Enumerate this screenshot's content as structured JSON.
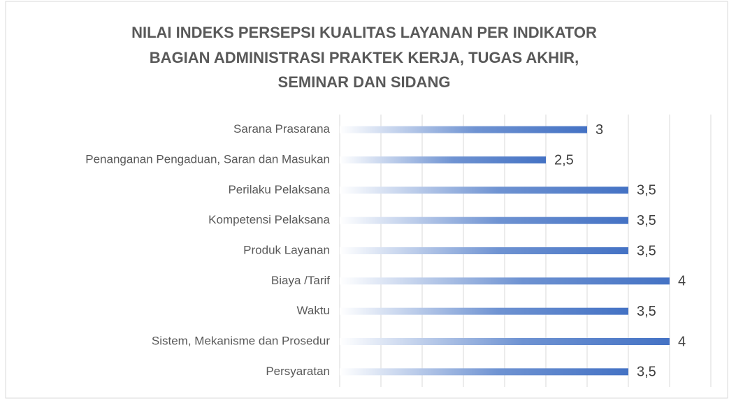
{
  "chart_data": {
    "type": "bar",
    "orientation": "horizontal",
    "title": [
      "NILAI INDEKS PERSEPSI KUALITAS LAYANAN PER INDIKATOR",
      "BAGIAN ADMINISTRASI PRAKTEK KERJA, TUGAS AKHIR,",
      "SEMINAR DAN SIDANG"
    ],
    "categories": [
      "Sarana Prasarana",
      "Penanganan Pengaduan, Saran dan Masukan",
      "Perilaku Pelaksana",
      "Kompetensi Pelaksana",
      "Produk Layanan",
      "Biaya /Tarif",
      "Waktu",
      "Sistem, Mekanisme dan Prosedur",
      "Persyaratan"
    ],
    "values": [
      3,
      2.5,
      3.5,
      3.5,
      3.5,
      4,
      3.5,
      4,
      3.5
    ],
    "value_labels": [
      "3",
      "2,5",
      "3,5",
      "3,5",
      "3,5",
      "4",
      "3,5",
      "4",
      "3,5"
    ],
    "color": "#4472c4",
    "xlim": [
      0,
      4.5
    ],
    "xticks": [
      0,
      0.5,
      1,
      1.5,
      2,
      2.5,
      3,
      3.5,
      4,
      4.5
    ],
    "grid": true
  }
}
